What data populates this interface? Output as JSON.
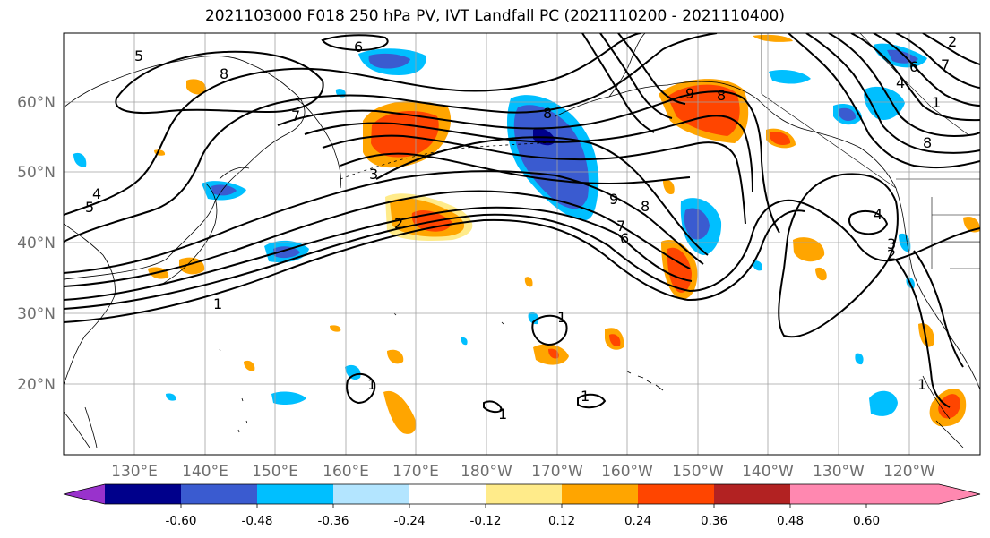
{
  "title": "2021103000 F018 250 hPa PV, IVT Landfall PC (2021110200 - 2021110400)",
  "lat_labels": [
    "60°N",
    "50°N",
    "40°N",
    "30°N",
    "20°N"
  ],
  "lon_labels": [
    "130°E",
    "140°E",
    "150°E",
    "160°E",
    "170°E",
    "180°W",
    "170°W",
    "160°W",
    "150°W",
    "140°W",
    "130°W",
    "120°W"
  ],
  "colorbar": {
    "colors": [
      "#9932cc",
      "#00008b",
      "#3a5bd0",
      "#00bfff",
      "#b3e5ff",
      "#ffffff",
      "#ffeb8a",
      "#ffa500",
      "#ff4500",
      "#b22222",
      "#ff88b0"
    ],
    "tick_labels": [
      "-0.60",
      "-0.48",
      "-0.36",
      "-0.24",
      "-0.12",
      "0.12",
      "0.24",
      "0.36",
      "0.48",
      "0.60"
    ]
  },
  "contour_labels": [
    "6",
    "8",
    "5",
    "7",
    "4",
    "5",
    "3",
    "2",
    "1",
    "8",
    "9",
    "8",
    "7",
    "6",
    "4",
    "3",
    "2",
    "1",
    "1",
    "1",
    "1",
    "1",
    "4",
    "2",
    "1",
    "8",
    "9",
    "8",
    "6",
    "7"
  ]
}
